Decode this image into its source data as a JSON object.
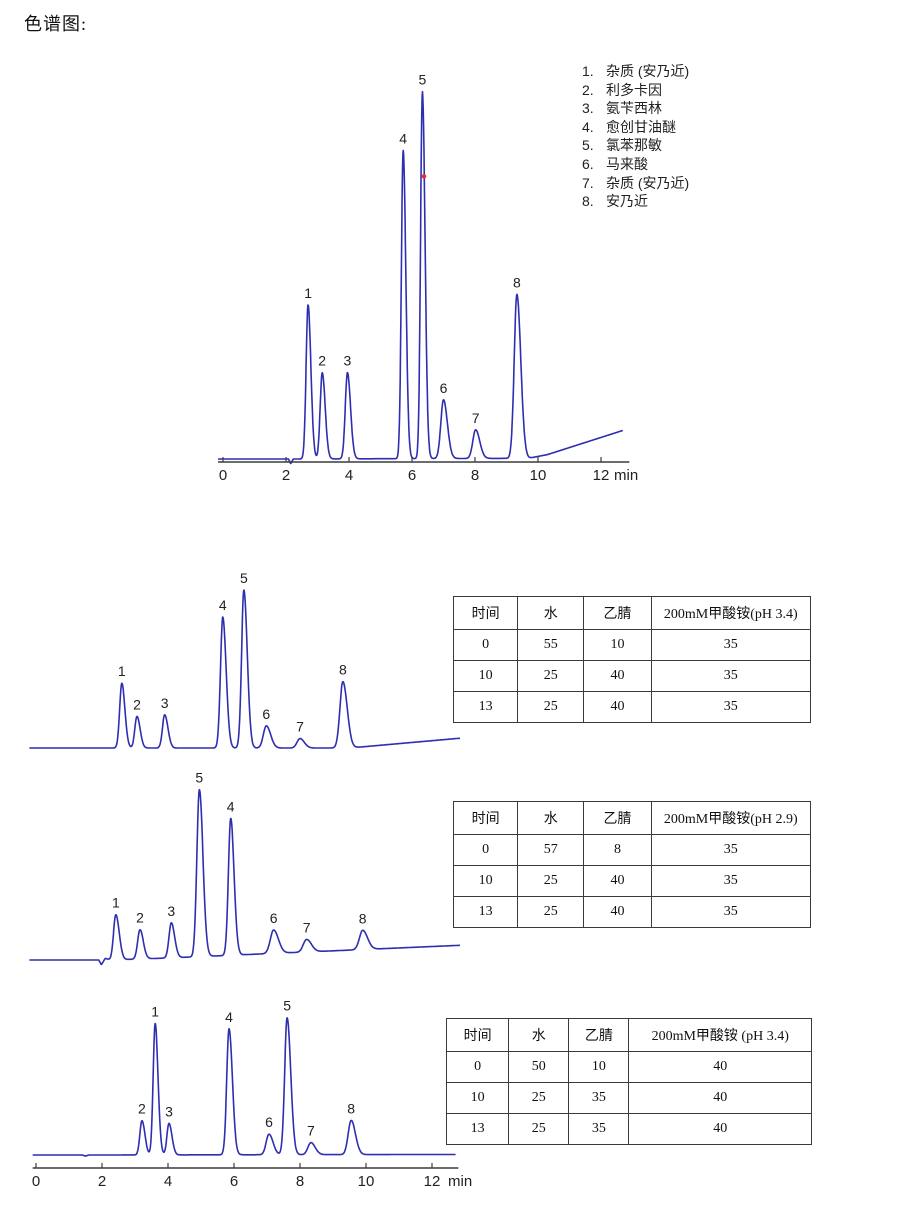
{
  "page": {
    "title": "色谱图:"
  },
  "legend": {
    "items": [
      {
        "num": "1.",
        "label": "杂质 (安乃近)"
      },
      {
        "num": "2.",
        "label": "利多卡因"
      },
      {
        "num": "3.",
        "label": "氨苄西林"
      },
      {
        "num": "4.",
        "label": "愈创甘油醚"
      },
      {
        "num": "5.",
        "label": "氯苯那敏"
      },
      {
        "num": "6.",
        "label": "马来酸"
      },
      {
        "num": "7.",
        "label": "杂质 (安乃近)"
      },
      {
        "num": "8.",
        "label": "安乃近"
      }
    ]
  },
  "chart_data": [
    {
      "id": "main",
      "type": "line",
      "title": "主色谱图",
      "xlabel": "min",
      "x_unit": "min",
      "x_ticks": [
        0,
        2,
        4,
        6,
        8,
        10,
        12
      ],
      "x_range": [
        0,
        13
      ],
      "axis": true,
      "peaks": [
        {
          "label": "1",
          "t": 2.7,
          "rel_h": 0.42,
          "w": 0.062
        },
        {
          "label": "2",
          "t": 3.15,
          "rel_h": 0.235,
          "w": 0.065
        },
        {
          "label": "3",
          "t": 3.95,
          "rel_h": 0.235,
          "w": 0.068
        },
        {
          "label": "4",
          "t": 5.72,
          "rel_h": 0.84,
          "w": 0.058
        },
        {
          "label": "5",
          "t": 6.33,
          "rel_h": 1.0,
          "w": 0.058
        },
        {
          "label": "6",
          "t": 7.0,
          "rel_h": 0.16,
          "w": 0.085
        },
        {
          "label": "7",
          "t": 8.02,
          "rel_h": 0.078,
          "w": 0.09
        },
        {
          "label": "8",
          "t": 9.33,
          "rel_h": 0.447,
          "w": 0.085
        }
      ],
      "baseline": [
        [
          -0.16,
          0
        ],
        [
          2.08,
          0
        ],
        [
          2.15,
          -0.013
        ],
        [
          2.23,
          0
        ],
        [
          9.7,
          0.002
        ],
        [
          10.3,
          0.012
        ],
        [
          12.7,
          0.078
        ]
      ],
      "annotations": [
        {
          "type": "red-dot",
          "t": 6.38,
          "rel_y": 0.77
        }
      ]
    },
    {
      "id": "grad1",
      "type": "line",
      "title": "梯度1色谱图",
      "x_unit": "min",
      "axis": false,
      "peaks": [
        {
          "label": "1",
          "t": 2.6,
          "rel_h": 0.41,
          "w": 0.065
        },
        {
          "label": "2",
          "t": 3.06,
          "rel_h": 0.2,
          "w": 0.065
        },
        {
          "label": "3",
          "t": 3.9,
          "rel_h": 0.21,
          "w": 0.068
        },
        {
          "label": "4",
          "t": 5.66,
          "rel_h": 0.83,
          "w": 0.07
        },
        {
          "label": "5",
          "t": 6.3,
          "rel_h": 1.0,
          "w": 0.07
        },
        {
          "label": "6",
          "t": 6.98,
          "rel_h": 0.14,
          "w": 0.09
        },
        {
          "label": "7",
          "t": 8.0,
          "rel_h": 0.06,
          "w": 0.09
        },
        {
          "label": "8",
          "t": 9.3,
          "rel_h": 0.42,
          "w": 0.09
        }
      ],
      "baseline": [
        [
          -0.2,
          0
        ],
        [
          9.5,
          0
        ],
        [
          12.85,
          0.062
        ]
      ],
      "annotations": []
    },
    {
      "id": "grad2",
      "type": "line",
      "title": "梯度2色谱图",
      "x_unit": "min",
      "axis": false,
      "peaks": [
        {
          "label": "1",
          "t": 2.42,
          "rel_h": 0.27,
          "w": 0.07
        },
        {
          "label": "2",
          "t": 3.15,
          "rel_h": 0.175,
          "w": 0.07
        },
        {
          "label": "3",
          "t": 4.1,
          "rel_h": 0.21,
          "w": 0.07
        },
        {
          "label": "5",
          "t": 4.95,
          "rel_h": 1.0,
          "w": 0.075
        },
        {
          "label": "4",
          "t": 5.9,
          "rel_h": 0.82,
          "w": 0.07
        },
        {
          "label": "6",
          "t": 7.2,
          "rel_h": 0.14,
          "w": 0.1
        },
        {
          "label": "7",
          "t": 8.2,
          "rel_h": 0.075,
          "w": 0.1
        },
        {
          "label": "8",
          "t": 9.9,
          "rel_h": 0.115,
          "w": 0.1
        }
      ],
      "baseline": [
        [
          -0.2,
          0
        ],
        [
          1.9,
          0
        ],
        [
          1.98,
          -0.028
        ],
        [
          2.1,
          0.01
        ],
        [
          2.25,
          0
        ],
        [
          4.0,
          0.012
        ],
        [
          12.85,
          0.088
        ]
      ],
      "annotations": []
    },
    {
      "id": "grad3",
      "type": "line",
      "title": "梯度3色谱图",
      "xlabel": "min",
      "x_unit": "min",
      "x_ticks": [
        0,
        2,
        4,
        6,
        8,
        10,
        12
      ],
      "x_range": [
        0,
        13
      ],
      "axis": true,
      "peaks": [
        {
          "label": "2",
          "t": 3.21,
          "rel_h": 0.25,
          "w": 0.062
        },
        {
          "label": "1",
          "t": 3.61,
          "rel_h": 0.96,
          "w": 0.06
        },
        {
          "label": "3",
          "t": 4.03,
          "rel_h": 0.23,
          "w": 0.062
        },
        {
          "label": "4",
          "t": 5.85,
          "rel_h": 0.92,
          "w": 0.07
        },
        {
          "label": "6",
          "t": 7.06,
          "rel_h": 0.15,
          "w": 0.085
        },
        {
          "label": "5",
          "t": 7.61,
          "rel_h": 1.0,
          "w": 0.075
        },
        {
          "label": "7",
          "t": 8.33,
          "rel_h": 0.088,
          "w": 0.09
        },
        {
          "label": "8",
          "t": 9.55,
          "rel_h": 0.25,
          "w": 0.09
        }
      ],
      "baseline": [
        [
          -0.1,
          0
        ],
        [
          1.4,
          0
        ],
        [
          1.5,
          -0.008
        ],
        [
          1.6,
          0
        ],
        [
          12.72,
          0.004
        ]
      ],
      "annotations": []
    }
  ],
  "tables": [
    {
      "headers": [
        "时间",
        "水",
        "乙腈",
        "200mM甲酸铵(pH 3.4)"
      ],
      "rows": [
        [
          "0",
          "55",
          "10",
          "35"
        ],
        [
          "10",
          "25",
          "40",
          "35"
        ],
        [
          "13",
          "25",
          "40",
          "35"
        ]
      ]
    },
    {
      "headers": [
        "时间",
        "水",
        "乙腈",
        "200mM甲酸铵(pH 2.9)"
      ],
      "rows": [
        [
          "0",
          "57",
          "8",
          "35"
        ],
        [
          "10",
          "25",
          "40",
          "35"
        ],
        [
          "13",
          "25",
          "40",
          "35"
        ]
      ]
    },
    {
      "headers": [
        "时间",
        "水",
        "乙腈",
        "200mM甲酸铵 (pH 3.4)"
      ],
      "rows": [
        [
          "0",
          "50",
          "10",
          "40"
        ],
        [
          "10",
          "25",
          "35",
          "40"
        ],
        [
          "13",
          "25",
          "35",
          "40"
        ]
      ]
    }
  ],
  "colors": {
    "trace": "#2e2eb0",
    "axis": "#3c3c3c",
    "text": "#1e1e1e",
    "red_marker": "#e03030",
    "table_border": "#3a3a3a"
  }
}
